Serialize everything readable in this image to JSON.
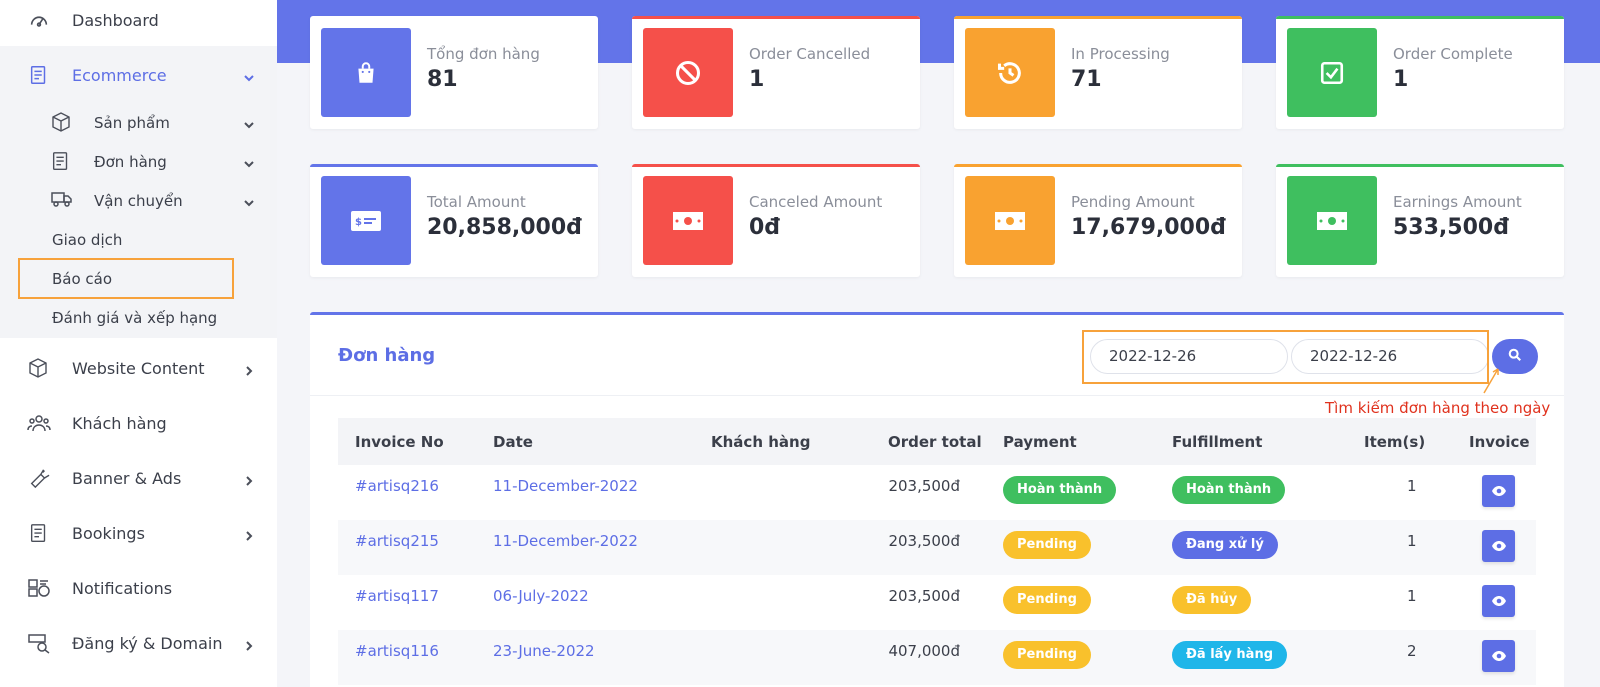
{
  "sidebar": {
    "dashboard": "Dashboard",
    "ecommerce": "Ecommerce",
    "san_pham": "Sản phẩm",
    "don_hang": "Đơn hàng",
    "van_chuyen": "Vận chuyển",
    "giao_dich": "Giao dịch",
    "bao_cao": "Báo cáo",
    "danh_gia": "Đánh giá và xếp hạng",
    "website_content": "Website Content",
    "khach_hang": "Khách hàng",
    "banner_ads": "Banner & Ads",
    "bookings": "Bookings",
    "notifications": "Notifications",
    "dang_ky": "Đăng ký & Domain"
  },
  "stats": [
    {
      "label": "Tổng đơn hàng",
      "value": "81",
      "color": "#6374e9"
    },
    {
      "label": "Order Cancelled",
      "value": "1",
      "color": "#f5504a"
    },
    {
      "label": "In Processing",
      "value": "71",
      "color": "#f9a230"
    },
    {
      "label": "Order Complete",
      "value": "1",
      "color": "#3fbf5f"
    },
    {
      "label": "Total Amount",
      "value": "20,858,000đ",
      "color": "#6374e9"
    },
    {
      "label": "Canceled Amount",
      "value": "0đ",
      "color": "#f5504a"
    },
    {
      "label": "Pending Amount",
      "value": "17,679,000đ",
      "color": "#f9a230"
    },
    {
      "label": "Earnings Amount",
      "value": "533,500đ",
      "color": "#3fbf5f"
    }
  ],
  "orders": {
    "title": "Đơn hàng",
    "date_from": "2022-12-26",
    "date_to": "2022-12-26",
    "annotation": "Tìm kiếm đơn hàng theo ngày",
    "columns": [
      "Invoice No",
      "Date",
      "Khách hàng",
      "Order total",
      "Payment",
      "Fulfillment",
      "Item(s)",
      "Invoice"
    ],
    "rows": [
      {
        "invoice": "#artisq216",
        "date": "11-December-2022",
        "customer": "",
        "total": "203,500đ",
        "payment": "Hoàn thành",
        "fulfillment": "Hoàn thành",
        "items": "1"
      },
      {
        "invoice": "#artisq215",
        "date": "11-December-2022",
        "customer": "",
        "total": "203,500đ",
        "payment": "Pending",
        "fulfillment": "Đang xử lý",
        "items": "1"
      },
      {
        "invoice": "#artisq117",
        "date": "06-July-2022",
        "customer": "",
        "total": "203,500đ",
        "payment": "Pending",
        "fulfillment": "Đã hủy",
        "items": "1"
      },
      {
        "invoice": "#artisq116",
        "date": "23-June-2022",
        "customer": "",
        "total": "407,000đ",
        "payment": "Pending",
        "fulfillment": "Đã lấy hàng",
        "items": "2"
      }
    ]
  }
}
